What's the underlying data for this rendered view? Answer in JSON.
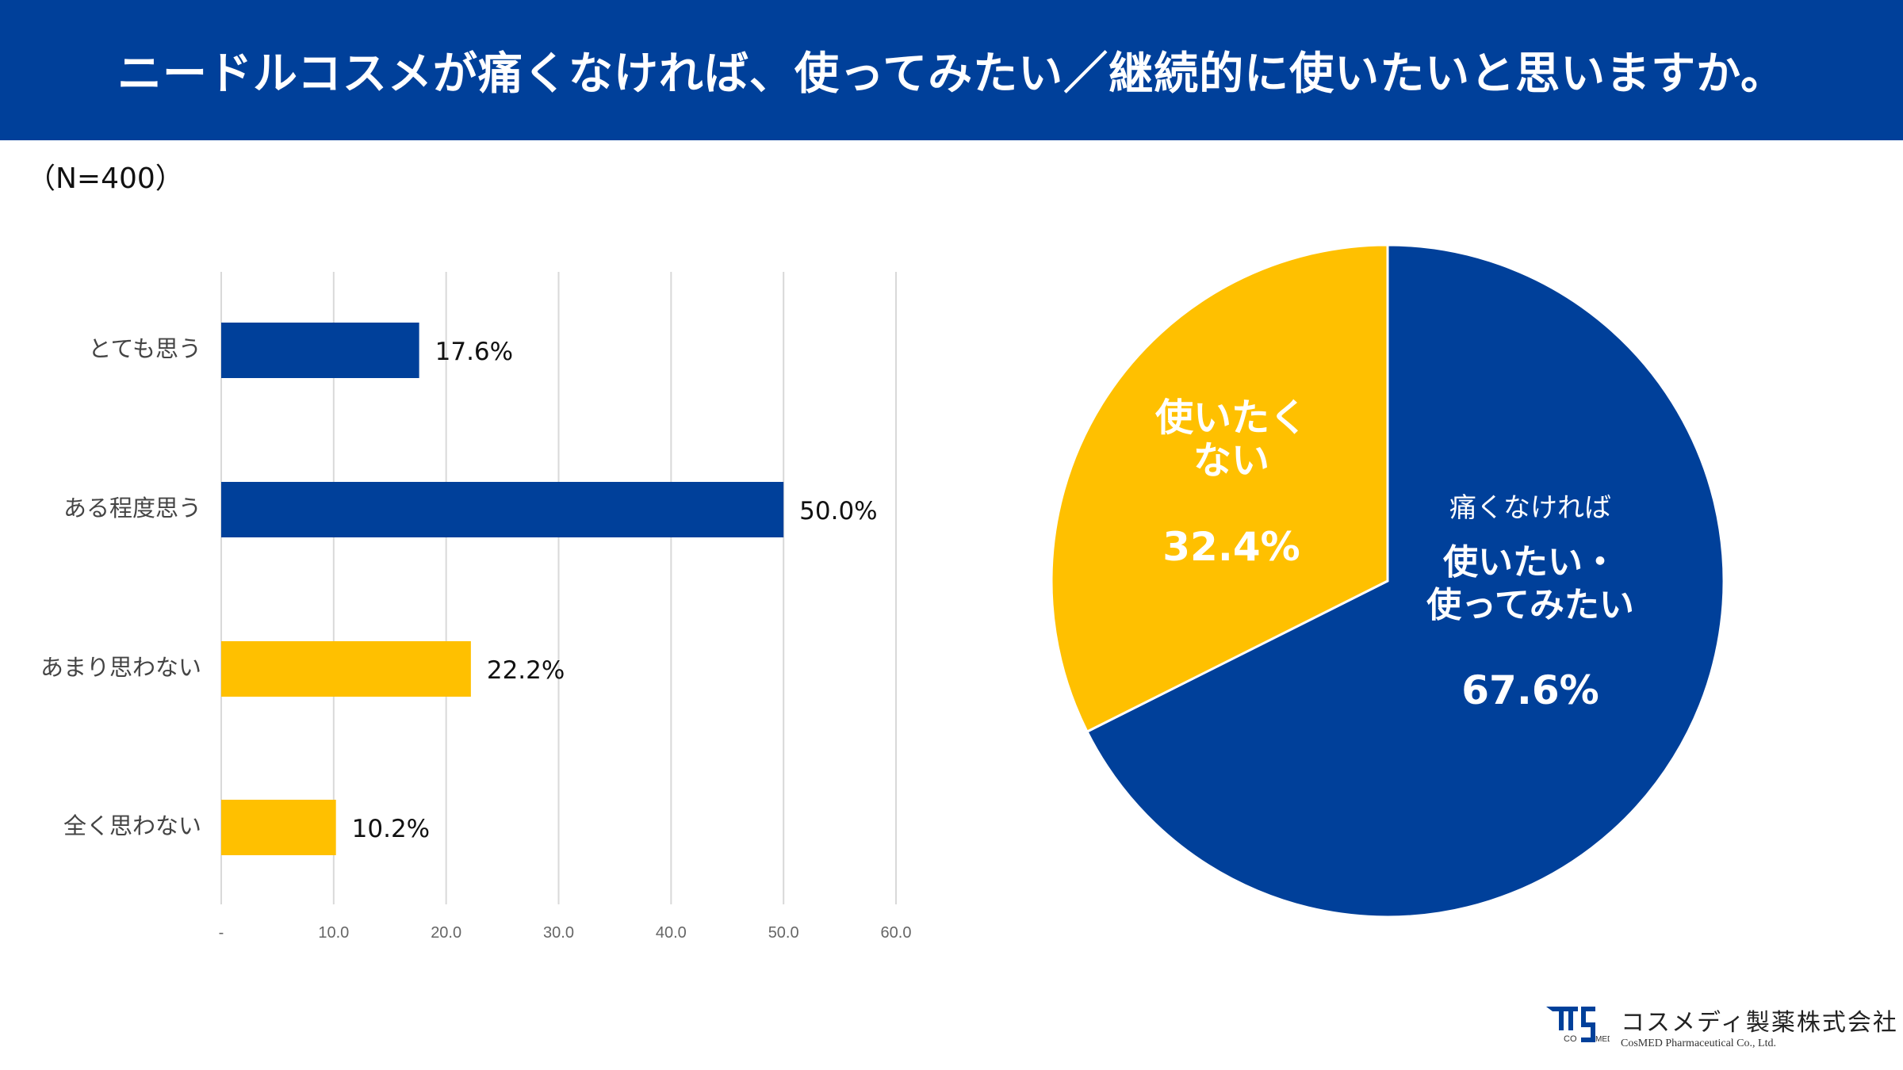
{
  "header": {
    "title": "ニードルコスメが痛くなければ、使ってみたい／継続的に使いたいと思いますか。"
  },
  "sample_size": "（N=400）",
  "colors": {
    "blue": "#00409a",
    "yellow": "#ffc000"
  },
  "chart_data": [
    {
      "type": "bar",
      "orientation": "horizontal",
      "categories": [
        "とても思う",
        "ある程度思う",
        "あまり思わない",
        "全く思わない"
      ],
      "values": [
        17.6,
        50.0,
        22.2,
        10.2
      ],
      "data_labels": [
        "17.6%",
        "50.0%",
        "22.2%",
        "10.2%"
      ],
      "bar_colors": [
        "#00409a",
        "#00409a",
        "#ffc000",
        "#ffc000"
      ],
      "xlim": [
        0,
        60
      ],
      "x_ticks": [
        "-",
        "10.0",
        "20.0",
        "30.0",
        "40.0",
        "50.0",
        "60.0"
      ],
      "grid": true
    },
    {
      "type": "pie",
      "slices": [
        {
          "label_lines": [
            "痛くなければ",
            "使いたい・",
            "使ってみたい"
          ],
          "value": 67.6,
          "value_label": "67.6%",
          "color": "#00409a"
        },
        {
          "label_lines": [
            "使いたく",
            "ない"
          ],
          "value": 32.4,
          "value_label": "32.4%",
          "color": "#ffc000"
        }
      ],
      "start": "top",
      "direction": "clockwise"
    }
  ],
  "logo": {
    "jp": "コスメディ製薬株式会社",
    "en": "CosMED Pharmaceutical Co., Ltd.",
    "mark": "COSMED"
  }
}
